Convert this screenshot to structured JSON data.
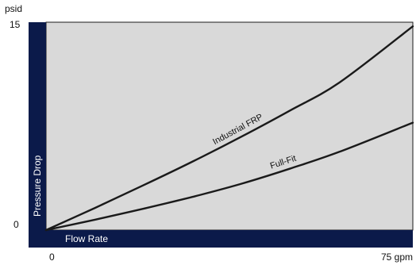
{
  "chart_data": {
    "type": "line",
    "title": "",
    "xlabel": "Flow Rate",
    "ylabel": "Pressure Drop",
    "x_unit": "gpm",
    "y_unit": "psid",
    "xlim": [
      0,
      75
    ],
    "ylim": [
      0,
      15
    ],
    "x_ticks": [
      {
        "value": 0,
        "label": "0"
      },
      {
        "value": 75,
        "label": "75 gpm"
      }
    ],
    "y_ticks": [
      {
        "value": 0,
        "label": "0"
      },
      {
        "value": 15,
        "label": "15"
      }
    ],
    "y_unit_label": "psid",
    "grid": false,
    "colors": {
      "plot_background": "#d9d9d9",
      "axis_band": "#0b1a4a",
      "line": "#1a1a1a"
    },
    "series": [
      {
        "name": "Industrial FRP",
        "x": [
          0,
          10,
          20,
          30,
          40,
          50,
          60,
          75
        ],
        "y": [
          0,
          1.6,
          3.25,
          4.95,
          6.75,
          8.65,
          10.65,
          14.7
        ]
      },
      {
        "name": "Full-Fit",
        "x": [
          0,
          10,
          20,
          30,
          40,
          50,
          60,
          75
        ],
        "y": [
          0,
          0.75,
          1.55,
          2.4,
          3.35,
          4.45,
          5.65,
          7.75
        ]
      }
    ]
  }
}
